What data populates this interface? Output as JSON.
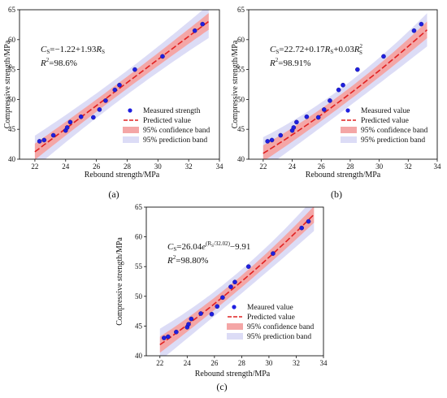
{
  "chart_data": [
    {
      "type": "scatter",
      "panel_label": "(a)",
      "xlabel": "Rebound strength/MPa",
      "ylabel": "Compressive strength/MPa",
      "xlim": [
        21,
        34
      ],
      "ylim": [
        40,
        65
      ],
      "xticks": [
        22,
        24,
        26,
        28,
        30,
        32,
        34
      ],
      "yticks": [
        40,
        45,
        50,
        55,
        60,
        65
      ],
      "grid": false,
      "legend_position": "lower-right",
      "equation": {
        "lhs": "C",
        "lhs_sub": "S",
        "rhs": "=−1.22+1.93",
        "var": "R",
        "var_sub": "S",
        "r2": "=98.6%"
      },
      "fit": {
        "model": "linear",
        "a": -1.22,
        "b": 1.93
      },
      "bands": {
        "confidence_halfwidth": 1.0,
        "prediction_halfwidth": 2.0
      },
      "legend": [
        "Measured strength",
        "Predicted value",
        "95% confidence band",
        "95% prediction band"
      ],
      "colors": {
        "points": "#1f1fe0",
        "fit": "#e02020",
        "confidence": "#f4a6a6",
        "prediction": "#dcdcf6"
      },
      "series": [
        {
          "name": "Measured strength",
          "x": [
            22.3,
            22.6,
            23.2,
            24.0,
            24.1,
            24.3,
            25.0,
            25.8,
            26.2,
            26.6,
            27.2,
            27.5,
            28.5,
            30.3,
            32.4,
            32.9
          ],
          "y": [
            43.0,
            43.2,
            44.0,
            44.8,
            45.3,
            46.2,
            47.1,
            47.0,
            48.3,
            49.8,
            51.6,
            52.4,
            55.0,
            57.2,
            61.5,
            62.6
          ]
        }
      ]
    },
    {
      "type": "scatter",
      "panel_label": "(b)",
      "xlabel": "Rebound strength/MPa",
      "ylabel": "Compressive strength/MPa",
      "xlim": [
        21,
        34
      ],
      "ylim": [
        40,
        65
      ],
      "xticks": [
        22,
        24,
        26,
        28,
        30,
        32,
        34
      ],
      "yticks": [
        40,
        45,
        50,
        55,
        60,
        65
      ],
      "grid": false,
      "legend_position": "lower-right",
      "equation": {
        "lhs": "C",
        "lhs_sub": "S",
        "rhs": "=22.72+0.17",
        "var": "R",
        "var_sub": "S",
        "rhs2": "+0.03",
        "var2": "R",
        "var2_sub": "S",
        "var2_sup": "2",
        "r2": "=98.91%"
      },
      "fit": {
        "model": "quadratic",
        "a": 22.72,
        "b": 0.17,
        "c": 0.03
      },
      "bands": {
        "confidence_halfwidth": 1.0,
        "prediction_halfwidth": 2.0
      },
      "legend": [
        "Measured value",
        "Predicted value",
        "95% confidence band",
        "95% prediction band"
      ],
      "colors": {
        "points": "#1f1fe0",
        "fit": "#e02020",
        "confidence": "#f4a6a6",
        "prediction": "#dcdcf6"
      },
      "series": [
        {
          "name": "Measured value",
          "x": [
            22.3,
            22.6,
            23.2,
            24.0,
            24.1,
            24.3,
            25.0,
            25.8,
            26.2,
            26.6,
            27.2,
            27.5,
            28.5,
            30.3,
            32.4,
            32.9
          ],
          "y": [
            43.0,
            43.2,
            44.0,
            44.8,
            45.3,
            46.2,
            47.1,
            47.0,
            48.3,
            49.8,
            51.6,
            52.4,
            55.0,
            57.2,
            61.5,
            62.6
          ]
        }
      ]
    },
    {
      "type": "scatter",
      "panel_label": "(c)",
      "xlabel": "Rebound strength/MPa",
      "ylabel": "Compressive strength/MPa",
      "xlim": [
        21,
        34
      ],
      "ylim": [
        40,
        65
      ],
      "xticks": [
        22,
        24,
        26,
        28,
        30,
        32,
        34
      ],
      "yticks": [
        40,
        45,
        50,
        55,
        60,
        65
      ],
      "grid": false,
      "legend_position": "lower-right",
      "equation": {
        "lhs": "C",
        "lhs_sub": "S",
        "rhs": "=26.04",
        "exp_base": "e",
        "exp": "(R",
        "exp_sub": "S",
        "exp_tail": "/32.02)",
        "rhs2": "−9.91",
        "r2": "=98.80%"
      },
      "fit": {
        "model": "exponential",
        "a": 26.04,
        "d": 32.02,
        "c": -9.91
      },
      "bands": {
        "confidence_halfwidth": 1.0,
        "prediction_halfwidth": 2.0
      },
      "legend": [
        "Meaured value",
        "Predicted value",
        "95% confidence band",
        "95% prediction band"
      ],
      "colors": {
        "points": "#1f1fe0",
        "fit": "#e02020",
        "confidence": "#f4a6a6",
        "prediction": "#dcdcf6"
      },
      "series": [
        {
          "name": "Meaured value",
          "x": [
            22.3,
            22.6,
            23.2,
            24.0,
            24.1,
            24.3,
            25.0,
            25.8,
            26.2,
            26.6,
            27.2,
            27.5,
            28.5,
            30.3,
            32.4,
            32.9
          ],
          "y": [
            43.0,
            43.2,
            44.0,
            44.8,
            45.3,
            46.2,
            47.1,
            47.0,
            48.3,
            49.8,
            51.6,
            52.4,
            55.0,
            57.2,
            61.5,
            62.6
          ]
        }
      ]
    }
  ]
}
